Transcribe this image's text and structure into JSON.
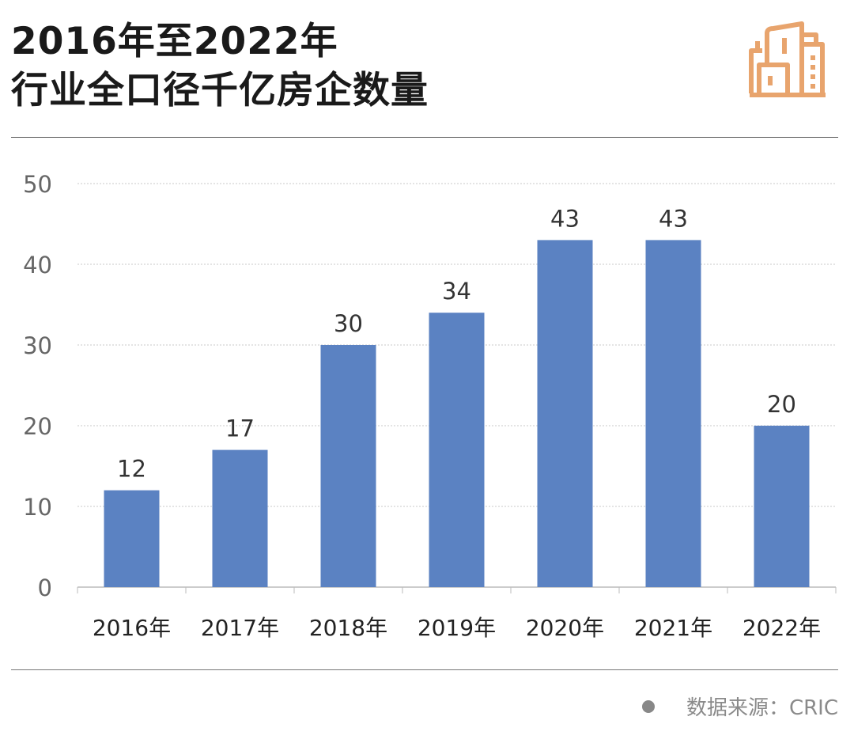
{
  "header": {
    "title_line1": "2016年至2022年",
    "title_line2": "行业全口径千亿房企数量",
    "logo_icon": "buildings-icon",
    "logo_color": "#E8A46D"
  },
  "footer": {
    "source_label": "数据来源：CRIC"
  },
  "chart_data": {
    "type": "bar",
    "categories": [
      "2016年",
      "2017年",
      "2018年",
      "2019年",
      "2020年",
      "2021年",
      "2022年"
    ],
    "values": [
      12,
      17,
      30,
      34,
      43,
      43,
      20
    ],
    "data_labels": [
      "12",
      "17",
      "30",
      "34",
      "43",
      "43",
      "20"
    ],
    "ylim": [
      0,
      50
    ],
    "yticks": [
      "0",
      "10",
      "20",
      "30",
      "40",
      "50"
    ],
    "grid": true,
    "bar_color": "#5B82C2",
    "legend": "none"
  }
}
